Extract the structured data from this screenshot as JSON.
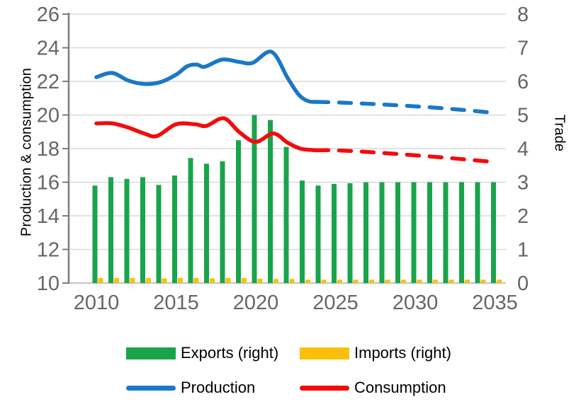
{
  "colors": {
    "grid": "#d9d9d9",
    "bottom_spine": "#c9c9c9",
    "left_spine": "#7f7f7f",
    "tick_label": "#666666",
    "text": "#000000",
    "production_blue": "#1a78c6",
    "consumption_red": "#f40b0b",
    "exports_green": "#19a44b",
    "imports_yellow": "#fcbf0a"
  },
  "chart_data": {
    "type": "combo bar+line, dual axis",
    "grid": true,
    "legend_position": "bottom",
    "x": [
      2010,
      2011,
      2012,
      2013,
      2014,
      2015,
      2016,
      2017,
      2018,
      2019,
      2020,
      2021,
      2022,
      2023,
      2024,
      2025,
      2026,
      2027,
      2028,
      2029,
      2030,
      2031,
      2032,
      2033,
      2034,
      2035
    ],
    "x_axis": {
      "ticks": [
        2010,
        2015,
        2020,
        2025,
        2030,
        2035
      ],
      "range": [
        2010,
        2035
      ]
    },
    "left_axis": {
      "label": "Production & consumption",
      "ticks": [
        26,
        24,
        22,
        20,
        18,
        16,
        14,
        12,
        10
      ],
      "range": [
        10,
        26
      ]
    },
    "right_axis": {
      "label": "Trade",
      "ticks": [
        8,
        7,
        6,
        5,
        4,
        3,
        2,
        1,
        0
      ],
      "range": [
        0,
        8
      ]
    },
    "series": [
      {
        "name": "Exports (right)",
        "type": "bar",
        "axis": "right",
        "color": "#19a44b",
        "values": [
          2.9,
          3.15,
          3.1,
          3.15,
          2.92,
          3.2,
          3.72,
          3.55,
          3.62,
          4.25,
          5.0,
          4.85,
          4.05,
          3.05,
          2.9,
          2.95,
          2.97,
          3.0,
          3.0,
          3.0,
          3.0,
          3.0,
          3.0,
          3.0,
          3.0,
          3.0
        ]
      },
      {
        "name": "Imports (right)",
        "type": "bar",
        "axis": "right",
        "color": "#fcbf0a",
        "values": [
          0.15,
          0.15,
          0.15,
          0.15,
          0.14,
          0.15,
          0.15,
          0.14,
          0.15,
          0.15,
          0.13,
          0.12,
          0.12,
          0.1,
          0.1,
          0.1,
          0.1,
          0.1,
          0.1,
          0.1,
          0.1,
          0.1,
          0.1,
          0.1,
          0.1,
          0.1
        ]
      },
      {
        "name": "Production",
        "type": "line",
        "axis": "left",
        "color": "#1a78c6",
        "forecast_dashed_from": 2023,
        "values": [
          22.25,
          22.5,
          22.05,
          21.85,
          21.95,
          22.4,
          23.0,
          22.95,
          23.3,
          23.15,
          23.25,
          23.75,
          22.2,
          20.85,
          20.78,
          20.75,
          20.72,
          20.67,
          20.62,
          20.57,
          20.5,
          20.45,
          20.37,
          20.3,
          20.2,
          20.12
        ],
        "draw_solid": [
          [
            2010,
            22.25
          ],
          [
            2011,
            22.5
          ],
          [
            2012,
            22.05
          ],
          [
            2013,
            21.85
          ],
          [
            2014,
            21.95
          ],
          [
            2015,
            22.4
          ],
          [
            2015.7,
            22.9
          ],
          [
            2016.3,
            23.0
          ],
          [
            2016.8,
            22.87
          ],
          [
            2017.9,
            23.3
          ],
          [
            2019,
            23.15
          ],
          [
            2019.8,
            23.1
          ],
          [
            2021,
            23.75
          ],
          [
            2022,
            22.2
          ],
          [
            2022.7,
            21.2
          ],
          [
            2023.3,
            20.82
          ],
          [
            2023.8,
            20.78
          ]
        ],
        "draw_dashed": [
          [
            2023.8,
            20.78
          ],
          [
            2025,
            20.75
          ],
          [
            2027,
            20.67
          ],
          [
            2029,
            20.57
          ],
          [
            2031,
            20.45
          ],
          [
            2033,
            20.3
          ],
          [
            2035,
            20.12
          ]
        ]
      },
      {
        "name": "Consumption",
        "type": "line",
        "axis": "left",
        "color": "#f40b0b",
        "forecast_dashed_from": 2023,
        "values": [
          19.5,
          19.5,
          19.25,
          18.9,
          18.8,
          19.45,
          19.45,
          19.4,
          19.8,
          18.95,
          18.4,
          18.9,
          18.35,
          17.92,
          17.9,
          17.9,
          17.87,
          17.8,
          17.73,
          17.67,
          17.6,
          17.53,
          17.45,
          17.37,
          17.28,
          17.2
        ],
        "draw_solid": [
          [
            2010,
            19.5
          ],
          [
            2011,
            19.5
          ],
          [
            2012,
            19.25
          ],
          [
            2013,
            18.9
          ],
          [
            2013.8,
            18.75
          ],
          [
            2015,
            19.45
          ],
          [
            2016.2,
            19.45
          ],
          [
            2016.9,
            19.35
          ],
          [
            2018,
            19.8
          ],
          [
            2019,
            18.95
          ],
          [
            2020,
            18.4
          ],
          [
            2021.1,
            18.9
          ],
          [
            2022,
            18.35
          ],
          [
            2022.8,
            18.0
          ],
          [
            2023.8,
            17.9
          ]
        ],
        "draw_dashed": [
          [
            2023.8,
            17.9
          ],
          [
            2025,
            17.9
          ],
          [
            2027,
            17.8
          ],
          [
            2029,
            17.67
          ],
          [
            2031,
            17.53
          ],
          [
            2033,
            17.37
          ],
          [
            2035,
            17.2
          ]
        ]
      }
    ]
  }
}
